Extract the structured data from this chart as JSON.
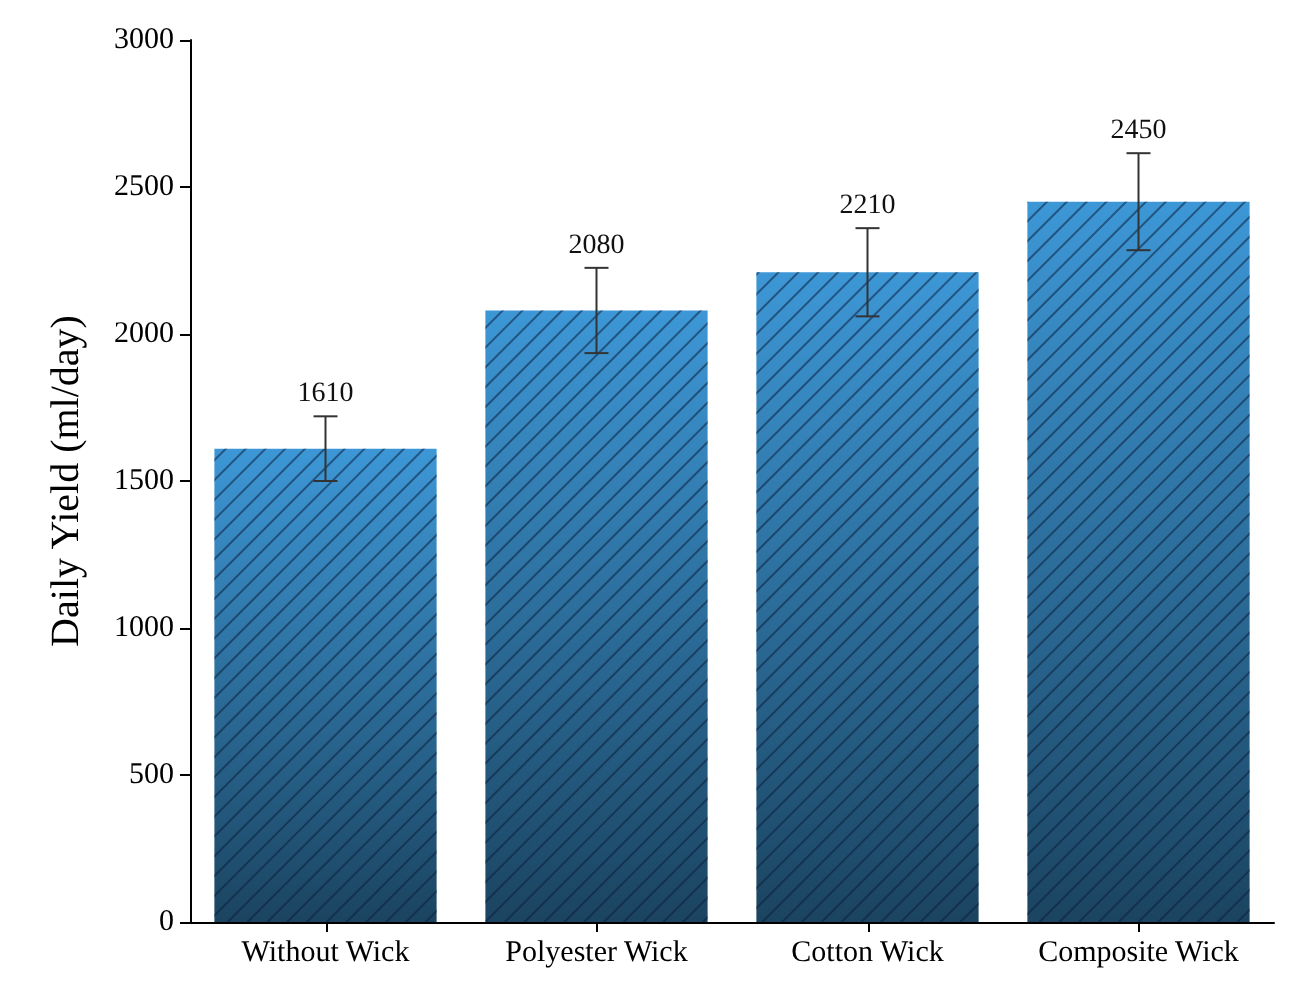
{
  "chart_data": {
    "type": "bar",
    "ylabel": "Daily Yield (ml/day)",
    "categories": [
      "Without Wick",
      "Polyester Wick",
      "Cotton Wick",
      "Composite Wick"
    ],
    "values": [
      1610,
      2080,
      2210,
      2450
    ],
    "errors": [
      110,
      145,
      150,
      165
    ],
    "color": "#3d97d6",
    "ylim": [
      0,
      3000
    ],
    "yticks": [
      0,
      500,
      1000,
      1500,
      2000,
      2500,
      3000
    ],
    "grid": false,
    "data_labels": true
  }
}
